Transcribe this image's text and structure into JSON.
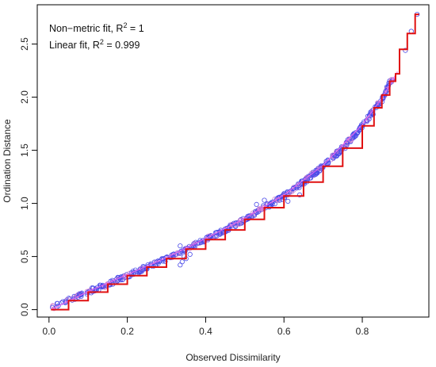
{
  "chart_data": {
    "type": "scatter",
    "xlabel": "Observed Dissimilarity",
    "ylabel": "Ordination Distance",
    "xlim": [
      -0.03,
      0.97
    ],
    "ylim": [
      -0.07,
      2.87
    ],
    "x_ticks": [
      0.0,
      0.2,
      0.4,
      0.6,
      0.8
    ],
    "x_tick_labels": [
      "0.0",
      "0.2",
      "0.4",
      "0.6",
      "0.8"
    ],
    "y_ticks": [
      0.0,
      0.5,
      1.0,
      1.5,
      2.0,
      2.5
    ],
    "y_tick_labels": [
      "0.0",
      "0.5",
      "1.0",
      "1.5",
      "2.0",
      "2.5"
    ],
    "grid": false,
    "legend": {
      "placement": "top-left",
      "line1_prefix": "Non−metric fit, R",
      "line1_sup": "2",
      "line1_suffix": " = 1",
      "line2_prefix": "Linear fit, R",
      "line2_sup": "2",
      "line2_suffix": " = 0.999"
    },
    "colors": {
      "points": "#4a4ae8",
      "points_secondary": "#d080d0",
      "step_fit": "#e01010",
      "linear_fit": "#ee66ee",
      "axis": "#000000"
    },
    "series": [
      {
        "kind": "points",
        "curve": [
          [
            0.01,
            0.02
          ],
          [
            0.05,
            0.09
          ],
          [
            0.1,
            0.17
          ],
          [
            0.15,
            0.24
          ],
          [
            0.2,
            0.32
          ],
          [
            0.25,
            0.4
          ],
          [
            0.3,
            0.48
          ],
          [
            0.35,
            0.57
          ],
          [
            0.4,
            0.66
          ],
          [
            0.45,
            0.75
          ],
          [
            0.5,
            0.85
          ],
          [
            0.55,
            0.96
          ],
          [
            0.6,
            1.07
          ],
          [
            0.65,
            1.2
          ],
          [
            0.7,
            1.35
          ],
          [
            0.75,
            1.52
          ],
          [
            0.8,
            1.73
          ],
          [
            0.85,
            1.98
          ],
          [
            0.88,
            2.2
          ],
          [
            0.9,
            2.4
          ],
          [
            0.92,
            2.55
          ],
          [
            0.935,
            2.78
          ]
        ],
        "outliers": [
          [
            0.335,
            0.42
          ],
          [
            0.34,
            0.45
          ],
          [
            0.35,
            0.48
          ],
          [
            0.345,
            0.5
          ],
          [
            0.36,
            0.52
          ],
          [
            0.335,
            0.6
          ],
          [
            0.37,
            0.62
          ],
          [
            0.61,
            1.02
          ],
          [
            0.64,
            1.08
          ],
          [
            0.55,
            1.03
          ],
          [
            0.53,
            0.99
          ],
          [
            0.91,
            2.44
          ],
          [
            0.925,
            2.62
          ],
          [
            0.94,
            2.78
          ]
        ]
      },
      {
        "kind": "step",
        "name": "Non-metric fit",
        "points": [
          [
            0.005,
            0.0
          ],
          [
            0.05,
            0.085
          ],
          [
            0.1,
            0.165
          ],
          [
            0.15,
            0.24
          ],
          [
            0.2,
            0.32
          ],
          [
            0.25,
            0.4
          ],
          [
            0.3,
            0.48
          ],
          [
            0.35,
            0.57
          ],
          [
            0.4,
            0.66
          ],
          [
            0.45,
            0.75
          ],
          [
            0.5,
            0.85
          ],
          [
            0.55,
            0.96
          ],
          [
            0.6,
            1.07
          ],
          [
            0.65,
            1.2
          ],
          [
            0.7,
            1.35
          ],
          [
            0.75,
            1.52
          ],
          [
            0.8,
            1.73
          ],
          [
            0.83,
            1.9
          ],
          [
            0.85,
            2.02
          ],
          [
            0.87,
            2.15
          ],
          [
            0.885,
            2.22
          ],
          [
            0.895,
            2.45
          ],
          [
            0.91,
            2.45
          ],
          [
            0.915,
            2.6
          ],
          [
            0.93,
            2.6
          ],
          [
            0.935,
            2.78
          ],
          [
            0.945,
            2.78
          ]
        ]
      },
      {
        "kind": "line",
        "name": "Linear fit",
        "points": [
          [
            0.005,
            0.0
          ],
          [
            0.1,
            0.17
          ],
          [
            0.2,
            0.33
          ],
          [
            0.3,
            0.49
          ],
          [
            0.4,
            0.67
          ],
          [
            0.5,
            0.86
          ],
          [
            0.6,
            1.08
          ],
          [
            0.7,
            1.36
          ],
          [
            0.8,
            1.74
          ],
          [
            0.85,
            1.99
          ],
          [
            0.89,
            2.24
          ]
        ]
      }
    ]
  }
}
